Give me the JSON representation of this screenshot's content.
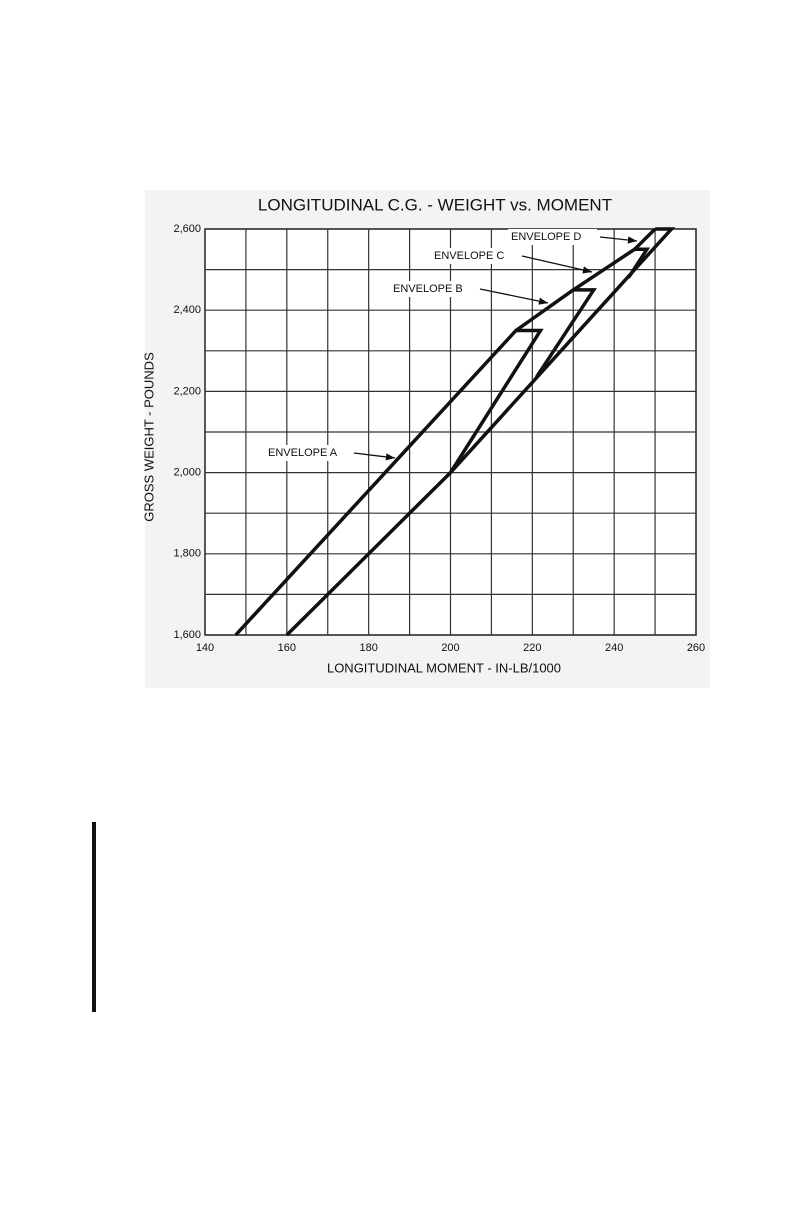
{
  "chart_data": {
    "type": "line",
    "title": "LONGITUDINAL C.G. -  WEIGHT vs. MOMENT",
    "x_label": "LONGITUDINAL MOMENT - IN-LB/1000",
    "y_label": "GROSS WEIGHT - POUNDS",
    "xlim": [
      140,
      260
    ],
    "ylim": [
      1600,
      2600
    ],
    "xticks": [
      140,
      160,
      180,
      200,
      220,
      240,
      260
    ],
    "yticks": [
      {
        "value": 1600,
        "label": "1,600"
      },
      {
        "value": 1800,
        "label": "1,800"
      },
      {
        "value": 2000,
        "label": "2,000"
      },
      {
        "value": 2200,
        "label": "2,200"
      },
      {
        "value": 2400,
        "label": "2,400"
      },
      {
        "value": 2600,
        "label": "2,600"
      }
    ],
    "xminorticks": [
      150,
      170,
      190,
      210,
      230,
      250
    ],
    "yminorticks": [
      1700,
      1900,
      2100,
      2300,
      2500
    ],
    "grid": true,
    "series": [
      {
        "color": "#111111",
        "x": [
          147.5,
          216,
          222,
          200,
          160,
          null,
          200,
          254,
          250,
          null,
          216,
          230,
          235,
          221,
          null,
          230,
          245,
          248,
          243.5,
          null,
          245,
          250
        ],
        "y": [
          1600,
          2350,
          2350,
          2000,
          1600,
          null,
          2000,
          2600,
          2600,
          null,
          2350,
          2450,
          2450,
          2235,
          null,
          2450,
          2550,
          2550,
          2480,
          null,
          2550,
          2600
        ]
      }
    ],
    "annotations": [
      "ENVELOPE A",
      "ENVELOPE B",
      "ENVELOPE C",
      "ENVELOPE D"
    ]
  }
}
